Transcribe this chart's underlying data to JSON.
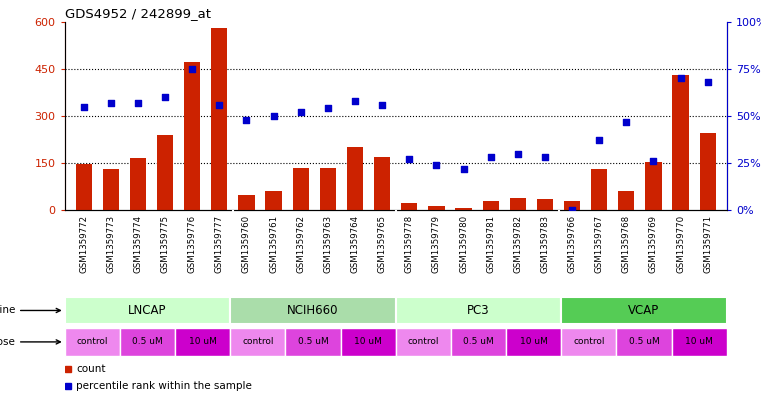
{
  "title": "GDS4952 / 242899_at",
  "samples": [
    "GSM1359772",
    "GSM1359773",
    "GSM1359774",
    "GSM1359775",
    "GSM1359776",
    "GSM1359777",
    "GSM1359760",
    "GSM1359761",
    "GSM1359762",
    "GSM1359763",
    "GSM1359764",
    "GSM1359765",
    "GSM1359778",
    "GSM1359779",
    "GSM1359780",
    "GSM1359781",
    "GSM1359782",
    "GSM1359783",
    "GSM1359766",
    "GSM1359767",
    "GSM1359768",
    "GSM1359769",
    "GSM1359770",
    "GSM1359771"
  ],
  "counts": [
    148,
    130,
    165,
    240,
    470,
    580,
    50,
    60,
    135,
    135,
    200,
    170,
    22,
    12,
    7,
    30,
    40,
    35,
    28,
    130,
    60,
    155,
    430,
    245
  ],
  "percentiles": [
    55,
    57,
    57,
    60,
    75,
    56,
    48,
    50,
    52,
    54,
    58,
    56,
    27,
    24,
    22,
    28,
    30,
    28,
    0,
    37,
    47,
    26,
    70,
    68
  ],
  "bar_color": "#cc2200",
  "dot_color": "#0000cc",
  "ylim_left": [
    0,
    600
  ],
  "ylim_right": [
    0,
    100
  ],
  "yticks_left": [
    0,
    150,
    300,
    450,
    600
  ],
  "yticks_right": [
    0,
    25,
    50,
    75,
    100
  ],
  "ytick_labels_right": [
    "0%",
    "25%",
    "50%",
    "75%",
    "100%"
  ],
  "cell_line_names": [
    "LNCAP",
    "NCIH660",
    "PC3",
    "VCAP"
  ],
  "cell_line_colors": [
    "#ccffcc",
    "#aaddaa",
    "#ccffcc",
    "#55cc55"
  ],
  "cell_line_bounds": [
    [
      0,
      6
    ],
    [
      6,
      12
    ],
    [
      12,
      18
    ],
    [
      18,
      24
    ]
  ],
  "dose_groups": [
    [
      "control",
      0,
      2
    ],
    [
      "0.5 uM",
      2,
      4
    ],
    [
      "10 uM",
      4,
      6
    ],
    [
      "control",
      6,
      8
    ],
    [
      "0.5 uM",
      8,
      10
    ],
    [
      "10 uM",
      10,
      12
    ],
    [
      "control",
      12,
      14
    ],
    [
      "0.5 uM",
      14,
      16
    ],
    [
      "10 uM",
      16,
      18
    ],
    [
      "control",
      18,
      20
    ],
    [
      "0.5 uM",
      20,
      22
    ],
    [
      "10 uM",
      22,
      24
    ]
  ],
  "dose_colors": {
    "control": "#ee88ee",
    "0.5 uM": "#dd44dd",
    "10 uM": "#cc00cc"
  },
  "background_color": "#ffffff",
  "plot_bg_color": "#ffffff",
  "xtick_bg_color": "#dddddd"
}
